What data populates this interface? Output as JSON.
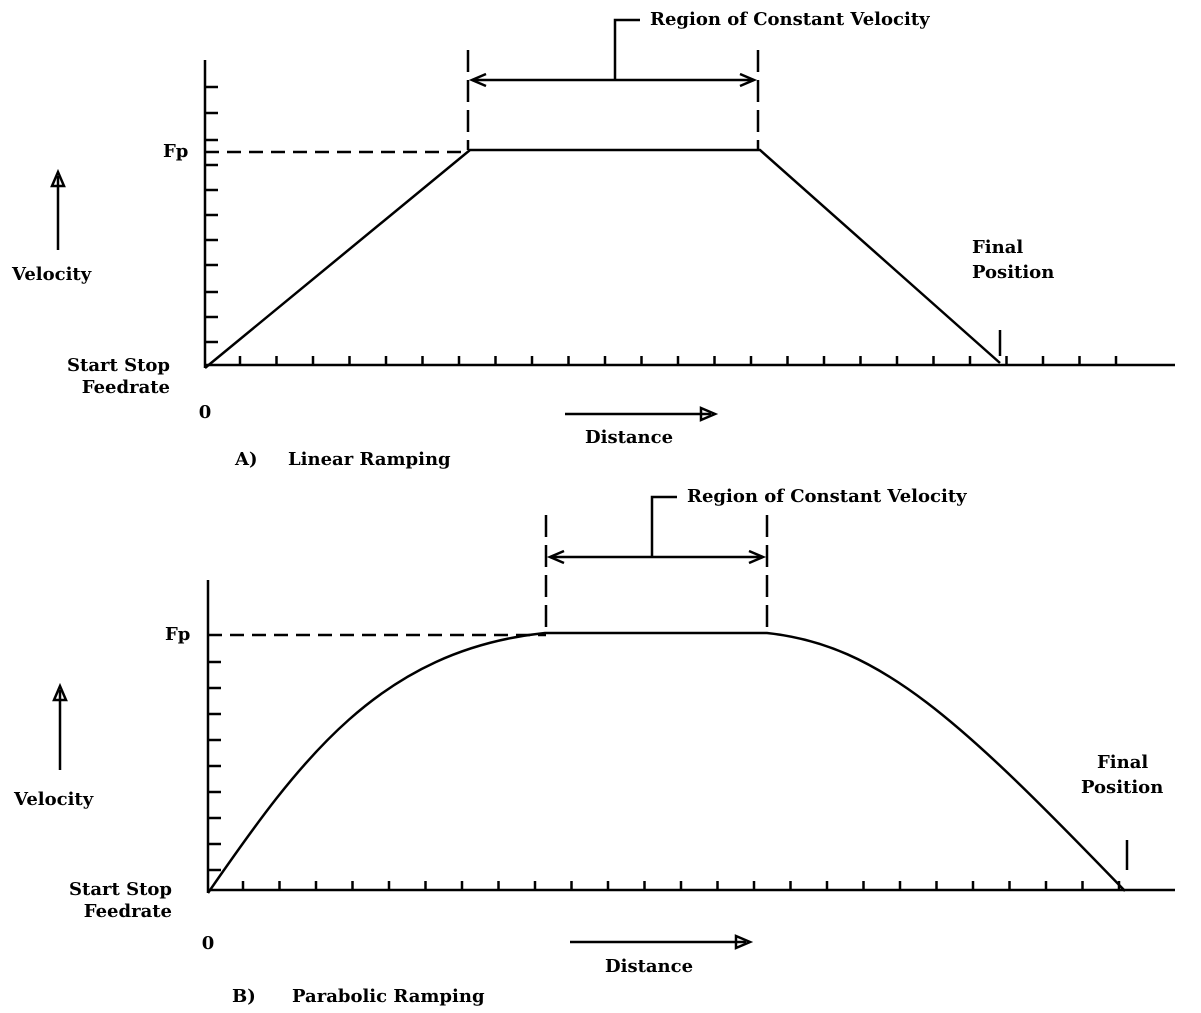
{
  "panels": [
    {
      "caption_letter": "A)",
      "caption": "Linear Ramping",
      "region_label": "Region of Constant Velocity",
      "peak_label": "Fp",
      "y_label": "Velocity",
      "origin_label": [
        "Start Stop",
        "Feedrate"
      ],
      "zero_label": "0",
      "x_label": "Distance",
      "end_label": [
        "Final",
        "Position"
      ]
    },
    {
      "caption_letter": "B)",
      "caption": "Parabolic Ramping",
      "region_label": "Region of Constant Velocity",
      "peak_label": "Fp",
      "y_label": "Velocity",
      "origin_label": [
        "Start Stop",
        "Feedrate"
      ],
      "zero_label": "0",
      "x_label": "Distance",
      "end_label": [
        "Final",
        "Position"
      ]
    }
  ]
}
